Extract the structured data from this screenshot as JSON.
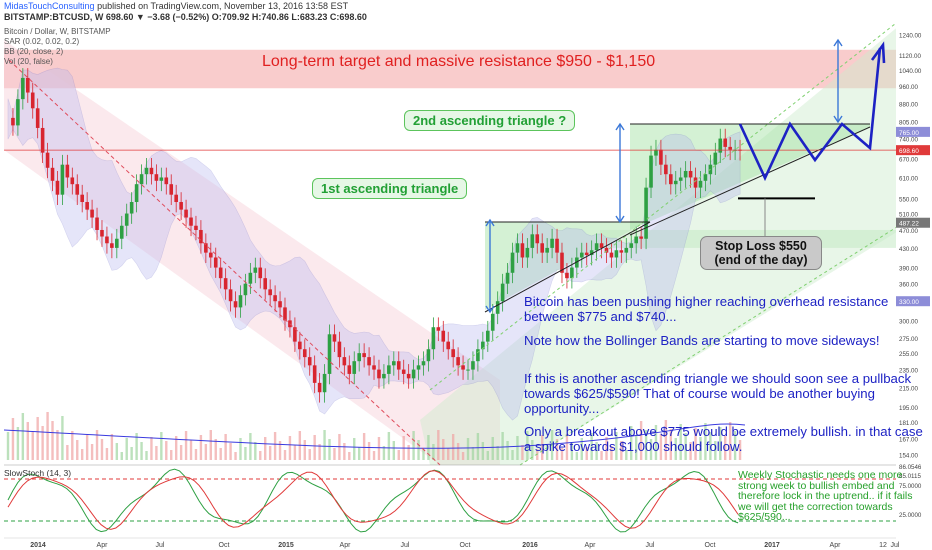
{
  "header": {
    "brand": "MidasTouchConsulting",
    "published": "published on TradingView.com, November 13, 2016 13:58 EST",
    "ticker_line": "BITSTAMP:BTCUSD, W  698.60 ▼ −3.68 (−0.52%) O:709.92 H:740.86 L:683.23 C:698.60"
  },
  "indicators": [
    "Bitcoin / Dollar, W, BITSTAMP",
    "SAR (0.02, 0.02, 0.2)",
    "BB (20, close, 2)",
    "Vol (20, false)"
  ],
  "annotations": {
    "long_term": "Long-term target and massive resistance $950 - $1,150",
    "triangle1": "1st ascending triangle",
    "triangle2": "2nd ascending triangle ?",
    "stop_loss_1": "Stop Loss $550",
    "stop_loss_2": "(end of the day)",
    "note1": "Bitcoin has been pushing higher reaching overhead resistance between $775 and $740...",
    "note2": "Note how the Bollinger Bands are starting to move sideways!",
    "note3": "If this is another ascending triangle we should soon see a pullback towards $625/$590! That of course would be another buying opportunity...",
    "note4": "Only a breakout above $775 would be extremely bullish. in that case a spike towards $1,000 should follow.",
    "stoch_label": "SlowStoch (14, 3)",
    "stoch_note": "Weekly Stochastic needs one more strong week to bullish embed and therefore lock in the uptrend.. if it fails we will get the correction towards $625/590..."
  },
  "colors": {
    "up": "#2ea043",
    "down": "#d8252f",
    "resistance_zone": "#f4a3a3",
    "bb_fill": "#b7b7f0",
    "annotation_blue": "#1d22c4",
    "annotation_green": "#22a035"
  },
  "chart_data": {
    "type": "candlestick",
    "title": "Bitcoin / Dollar, W, BITSTAMP",
    "y_scale": "log",
    "ylim": [
      150,
      1320
    ],
    "y_ticks": [
      "1240.00",
      "1120.00",
      "1040.00",
      "960.00",
      "880.00",
      "805.00",
      "740.00",
      "670.00",
      "610.00",
      "550.00",
      "510.00",
      "470.00",
      "430.00",
      "390.00",
      "360.00",
      "330.00",
      "300.00",
      "275.00",
      "255.00",
      "235.00",
      "215.00",
      "195.00",
      "181.00",
      "167.00",
      "154.00"
    ],
    "price_labels": {
      "last": "698.60",
      "sar": "487.22",
      "bb": "330.00",
      "bb2": "765.00"
    },
    "x_ticks": [
      "2014",
      "Apr",
      "Jul",
      "Oct",
      "2015",
      "Apr",
      "Jul",
      "Oct",
      "2016",
      "Apr",
      "Jul",
      "Oct",
      "2017",
      "Apr",
      "Jul",
      "12"
    ],
    "resistance_zone": [
      950,
      1150
    ],
    "stop_loss": 550,
    "weekly_closes": [
      820,
      790,
      900,
      1000,
      930,
      860,
      780,
      690,
      640,
      600,
      560,
      650,
      610,
      590,
      560,
      540,
      520,
      500,
      470,
      455,
      440,
      430,
      450,
      480,
      510,
      540,
      590,
      620,
      640,
      620,
      600,
      610,
      590,
      560,
      540,
      520,
      500,
      480,
      470,
      440,
      420,
      410,
      390,
      370,
      350,
      330,
      320,
      340,
      360,
      380,
      390,
      370,
      350,
      340,
      330,
      320,
      300,
      290,
      270,
      260,
      250,
      240,
      220,
      210,
      230,
      280,
      270,
      250,
      240,
      230,
      245,
      255,
      250,
      240,
      235,
      225,
      230,
      240,
      245,
      235,
      230,
      225,
      235,
      240,
      245,
      260,
      290,
      285,
      270,
      260,
      250,
      240,
      235,
      235,
      245,
      260,
      270,
      285,
      310,
      330,
      360,
      380,
      420,
      440,
      410,
      430,
      460,
      440,
      420,
      430,
      450,
      420,
      380,
      370,
      390,
      410,
      420,
      415,
      425,
      440,
      430,
      420,
      410,
      425,
      420,
      430,
      440,
      455,
      450,
      580,
      680,
      700,
      650,
      620,
      590,
      600,
      610,
      630,
      610,
      580,
      600,
      620,
      650,
      690,
      740,
      710,
      700,
      700,
      698.6
    ],
    "projection": [
      698,
      740,
      610,
      740,
      650,
      740,
      660,
      745,
      1150
    ],
    "stochastic": {
      "name": "SlowStoch (14, 3)",
      "levels": [
        80,
        20
      ],
      "y_ticks": [
        "86.0546",
        "85.0115",
        "75.0000",
        "25.0000"
      ]
    }
  }
}
